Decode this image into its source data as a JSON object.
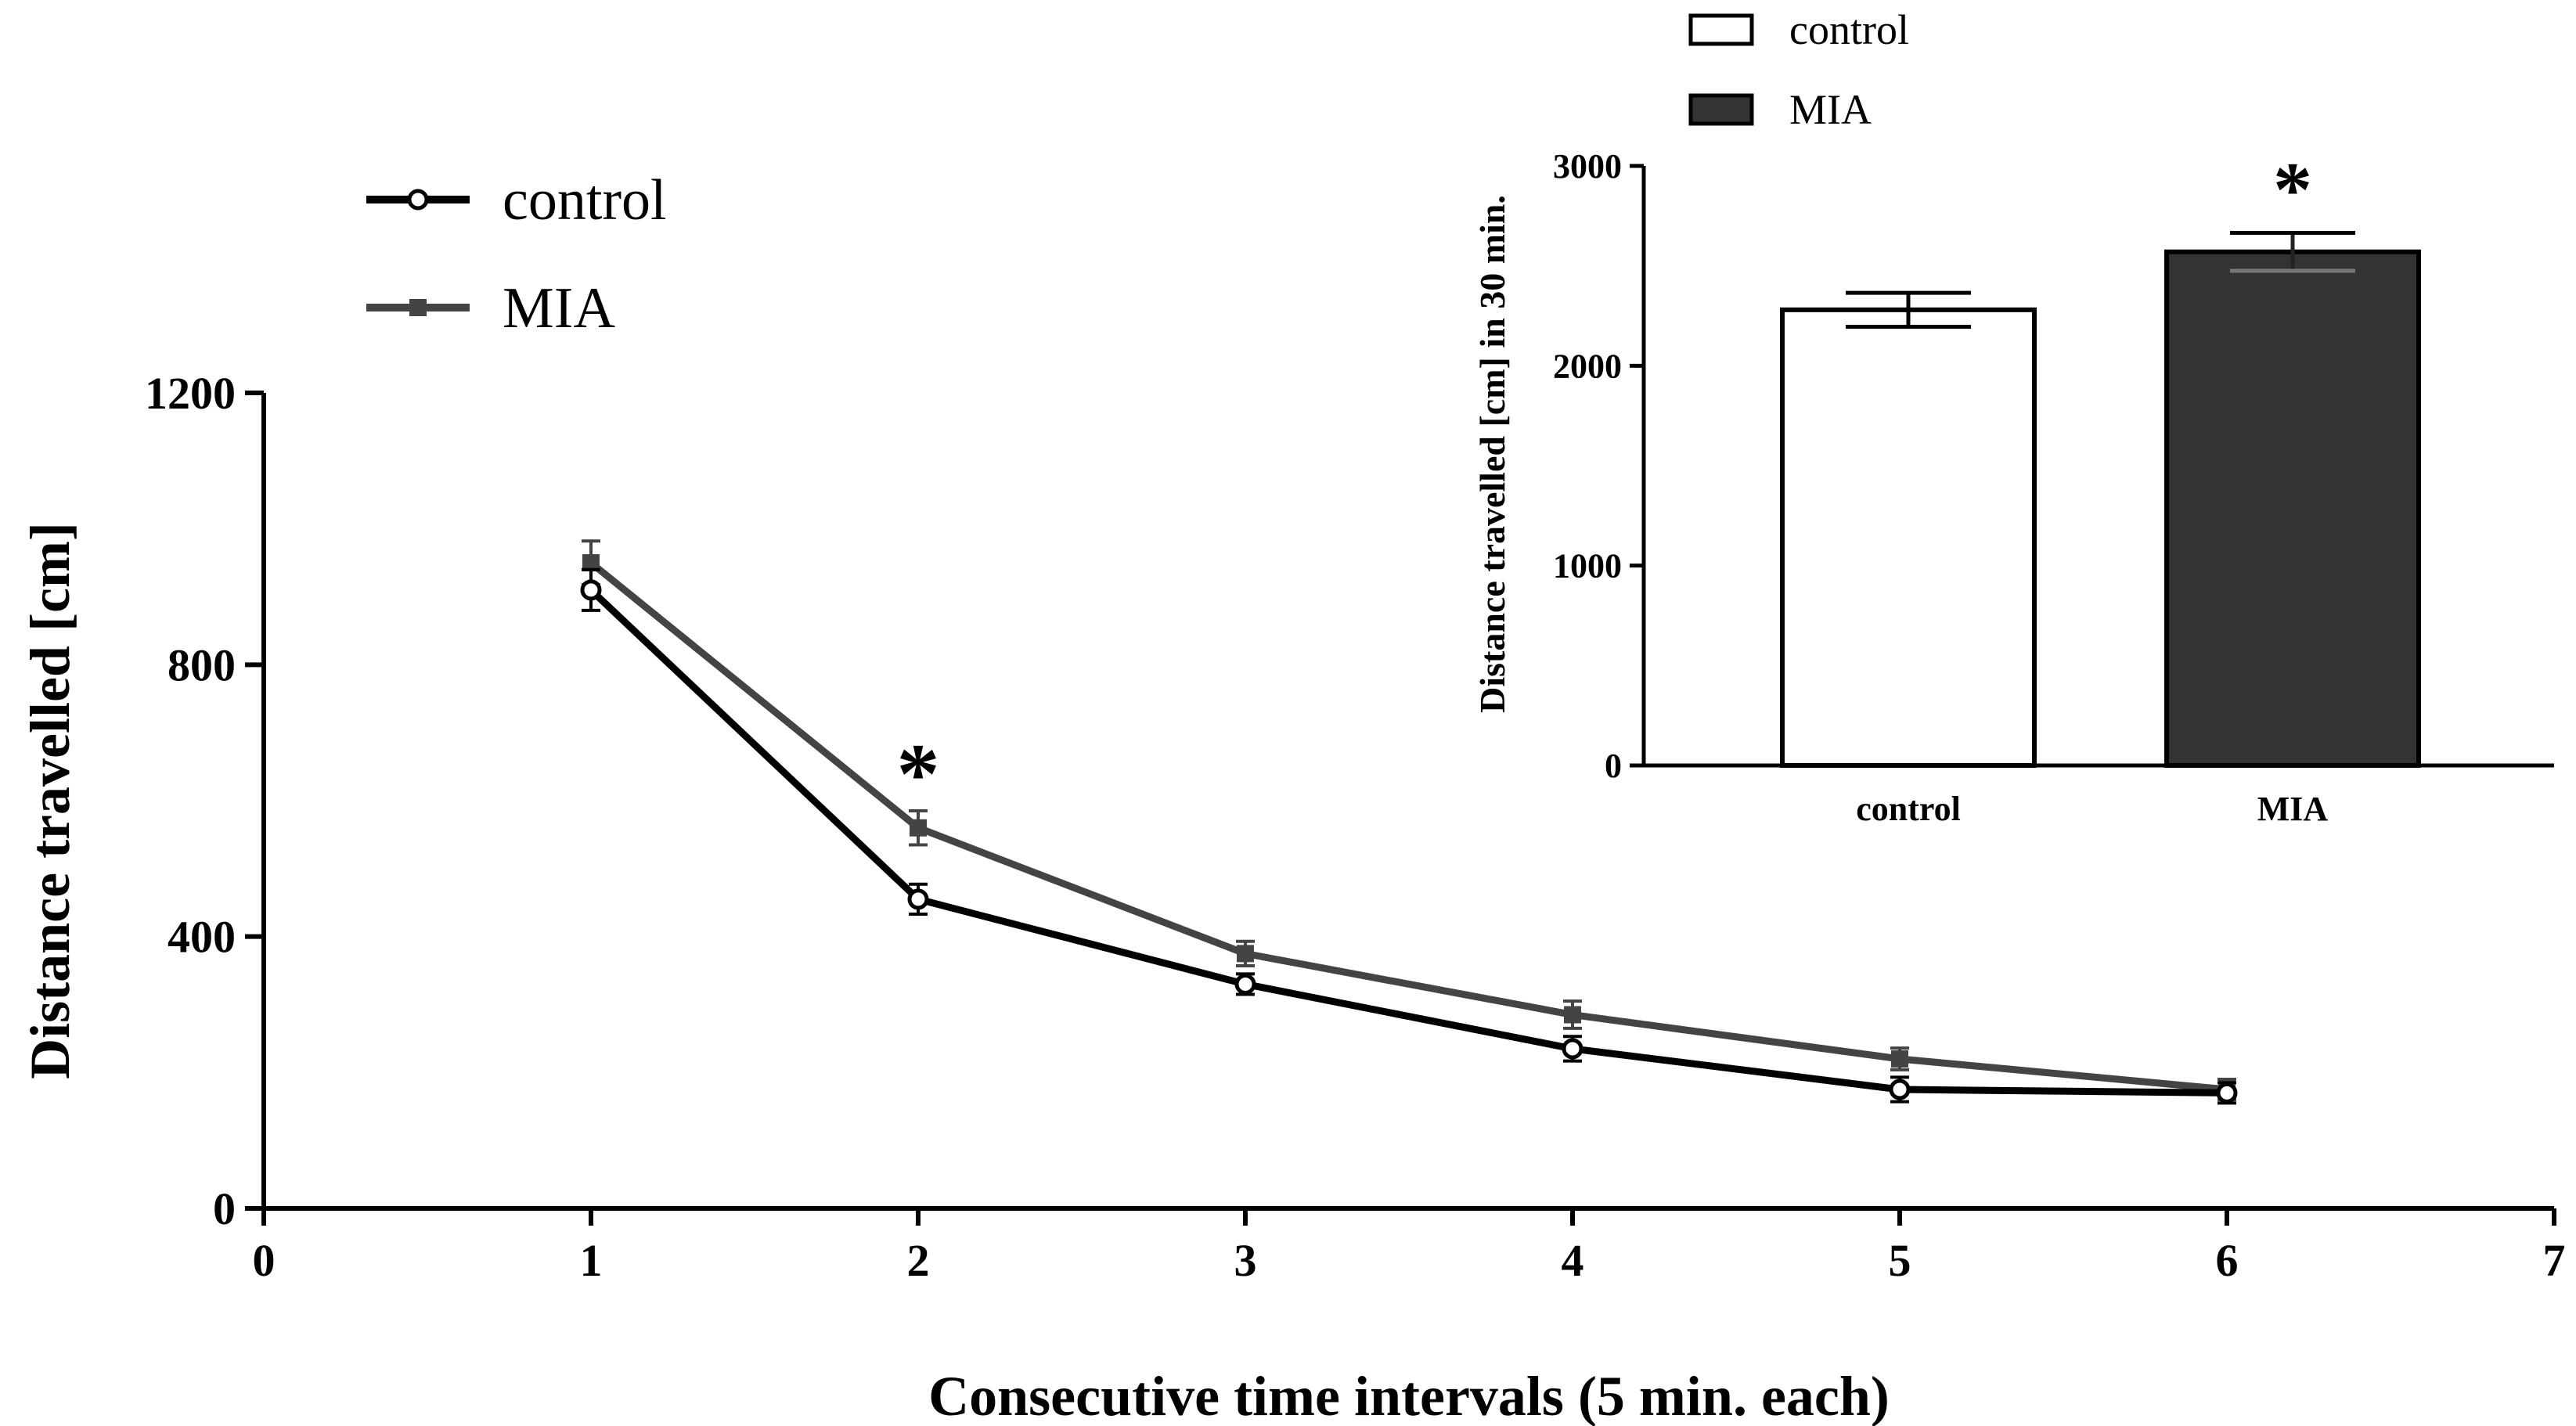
{
  "chart_data": [
    {
      "type": "line",
      "title": "",
      "xlabel": "Consecutive time intervals (5 min. each)",
      "ylabel": "Distance travelled [cm]",
      "xlim": [
        0,
        7
      ],
      "ylim": [
        0,
        1200
      ],
      "x_ticks": [
        "0",
        "1",
        "2",
        "3",
        "4",
        "5",
        "6",
        "7"
      ],
      "y_ticks": [
        "0",
        "400",
        "800",
        "1200"
      ],
      "grid": false,
      "legend_placement": "top-left",
      "x": [
        1,
        2,
        3,
        4,
        5,
        6
      ],
      "series": [
        {
          "name": "control",
          "marker": "open-circle",
          "color": "#000000",
          "values": [
            910,
            455,
            330,
            235,
            175,
            170
          ],
          "errors": [
            30,
            22,
            15,
            18,
            18,
            15
          ]
        },
        {
          "name": "MIA",
          "marker": "filled-square",
          "color": "#444444",
          "values": [
            950,
            560,
            375,
            285,
            220,
            175
          ],
          "errors": [
            32,
            25,
            18,
            20,
            16,
            15
          ]
        }
      ],
      "annotations": [
        {
          "x": 2,
          "text": "*"
        }
      ]
    },
    {
      "type": "bar",
      "title": "",
      "xlabel": "",
      "ylabel": "Distance travelled [cm] in 30 min.",
      "ylim": [
        0,
        3000
      ],
      "y_ticks": [
        "0",
        "1000",
        "2000",
        "3000"
      ],
      "grid": false,
      "legend_placement": "top-left",
      "categories": [
        "control",
        "MIA"
      ],
      "values": [
        2280,
        2570
      ],
      "errors": [
        85,
        95
      ],
      "colors": [
        "#ffffff",
        "#333333"
      ],
      "legend": [
        {
          "name": "control",
          "fill": "#ffffff"
        },
        {
          "name": "MIA",
          "fill": "#333333"
        }
      ],
      "annotations": [
        {
          "category": "MIA",
          "text": "*"
        }
      ]
    }
  ]
}
